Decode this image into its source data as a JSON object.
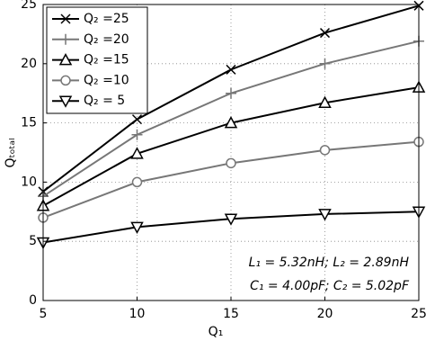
{
  "chart_data": {
    "type": "line",
    "x_label": "Q₁",
    "y_label": "Qₜₒₜₐₗ",
    "x": [
      5,
      10,
      15,
      20,
      25
    ],
    "series": [
      {
        "name": "Q₂ =25",
        "color": "#000000",
        "marker": "x",
        "values": [
          9.2,
          15.3,
          19.5,
          22.6,
          24.9
        ]
      },
      {
        "name": "Q₂ =20",
        "color": "#777777",
        "marker": "plus",
        "values": [
          8.8,
          14.0,
          17.5,
          20.0,
          21.9
        ]
      },
      {
        "name": "Q₂ =15",
        "color": "#000000",
        "marker": "triangle-up",
        "values": [
          8.0,
          12.4,
          15.0,
          16.7,
          18.0
        ]
      },
      {
        "name": "Q₂ =10",
        "color": "#777777",
        "marker": "circle",
        "values": [
          7.0,
          10.0,
          11.6,
          12.7,
          13.4
        ]
      },
      {
        "name": "Q₂ = 5",
        "color": "#000000",
        "marker": "triangle-down",
        "values": [
          4.9,
          6.2,
          6.9,
          7.3,
          7.5
        ]
      }
    ],
    "annotations": [
      "L₁ = 5.32nH; L₂ = 2.89nH",
      "C₁ = 4.00pF; C₂ = 5.02pF"
    ],
    "xlim": [
      5,
      25
    ],
    "xticks": [
      5,
      10,
      15,
      20,
      25
    ],
    "ylim": [
      0,
      25
    ],
    "yticks": [
      0,
      5,
      10,
      15,
      20,
      25
    ],
    "grid": true,
    "legend": "upper-left"
  }
}
